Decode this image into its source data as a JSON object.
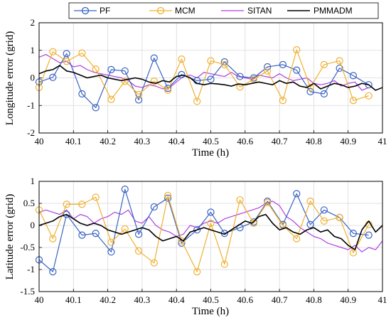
{
  "legend": {
    "entries": [
      {
        "name": "PF",
        "color": "#3a63c4",
        "marker": "circle"
      },
      {
        "name": "MCM",
        "color": "#f0b030",
        "marker": "circle"
      },
      {
        "name": "SITAN",
        "color": "#b040e0",
        "marker": "none"
      },
      {
        "name": "PMMADM",
        "color": "#000000",
        "marker": "none"
      }
    ]
  },
  "chart_data": [
    {
      "type": "line",
      "xlabel": "Time (h)",
      "ylabel": "Longitude error (grid)",
      "xlim": [
        40,
        41
      ],
      "ylim": [
        -2,
        2
      ],
      "xticks": [
        "40",
        "40.1",
        "40.2",
        "40.3",
        "40.4",
        "40.5",
        "40.6",
        "40.7",
        "40.8",
        "40.9",
        "41"
      ],
      "yticks": [
        "2",
        "1",
        "0",
        "-1",
        "-2"
      ],
      "grid": true,
      "series": [
        {
          "name": "PF",
          "x": [
            40.0,
            40.04,
            40.08,
            40.125,
            40.165,
            40.21,
            40.25,
            40.29,
            40.335,
            40.375,
            40.415,
            40.46,
            40.5,
            40.54,
            40.585,
            40.625,
            40.665,
            40.71,
            40.75,
            40.79,
            40.83,
            40.875,
            40.915,
            40.96
          ],
          "y": [
            -0.15,
            0.02,
            0.88,
            -0.58,
            -1.08,
            0.3,
            0.25,
            -0.8,
            0.72,
            -0.38,
            0.12,
            -0.1,
            -0.05,
            0.58,
            0.05,
            0.0,
            0.4,
            0.48,
            0.28,
            -0.5,
            -0.58,
            0.35,
            0.08,
            -0.25
          ]
        },
        {
          "name": "MCM",
          "x": [
            40.0,
            40.04,
            40.08,
            40.125,
            40.165,
            40.21,
            40.25,
            40.29,
            40.335,
            40.375,
            40.415,
            40.46,
            40.5,
            40.54,
            40.585,
            40.625,
            40.665,
            40.71,
            40.75,
            40.79,
            40.83,
            40.875,
            40.915,
            40.96
          ],
          "y": [
            -0.35,
            0.95,
            0.6,
            0.9,
            0.32,
            -0.78,
            -0.12,
            -0.6,
            -0.12,
            -0.45,
            0.68,
            -0.85,
            0.62,
            0.48,
            -0.33,
            -0.05,
            0.25,
            -0.82,
            1.02,
            -0.35,
            0.48,
            0.62,
            -0.82,
            -0.65
          ]
        },
        {
          "name": "SITAN",
          "x": [
            40.0,
            40.02,
            40.04,
            40.06,
            40.08,
            40.1,
            40.12,
            40.14,
            40.16,
            40.18,
            40.2,
            40.22,
            40.24,
            40.26,
            40.28,
            40.3,
            40.32,
            40.34,
            40.36,
            40.38,
            40.4,
            40.42,
            40.44,
            40.46,
            40.48,
            40.5,
            40.52,
            40.54,
            40.56,
            40.58,
            40.6,
            40.62,
            40.64,
            40.66,
            40.68,
            40.7,
            40.72,
            40.74,
            40.76,
            40.78,
            40.8,
            40.82,
            40.84,
            40.86,
            40.88,
            40.9,
            40.92,
            40.94,
            40.96
          ],
          "y": [
            0.75,
            0.85,
            0.7,
            0.55,
            0.6,
            0.4,
            0.45,
            0.3,
            0.2,
            0.15,
            0.1,
            0.05,
            0.0,
            -0.1,
            -0.3,
            -0.35,
            -0.25,
            -0.3,
            -0.4,
            -0.35,
            -0.15,
            0.05,
            0.1,
            0.0,
            0.2,
            0.15,
            0.1,
            0.05,
            0.2,
            0.05,
            0.0,
            -0.05,
            0.1,
            0.05,
            0.0,
            0.15,
            0.0,
            -0.1,
            -0.05,
            0.0,
            -0.2,
            -0.25,
            -0.2,
            -0.1,
            -0.3,
            -0.2,
            -0.15,
            -0.45,
            -0.35
          ]
        },
        {
          "name": "PMMADM",
          "x": [
            40.0,
            40.02,
            40.04,
            40.06,
            40.08,
            40.1,
            40.12,
            40.14,
            40.16,
            40.18,
            40.2,
            40.22,
            40.24,
            40.26,
            40.28,
            40.3,
            40.32,
            40.34,
            40.36,
            40.38,
            40.4,
            40.42,
            40.44,
            40.46,
            40.48,
            40.5,
            40.52,
            40.54,
            40.56,
            40.58,
            40.6,
            40.62,
            40.64,
            40.66,
            40.68,
            40.7,
            40.72,
            40.74,
            40.76,
            40.78,
            40.8,
            40.82,
            40.84,
            40.86,
            40.88,
            40.9,
            40.92,
            40.94,
            40.96,
            40.98,
            41.0
          ],
          "y": [
            0.15,
            0.25,
            0.3,
            0.45,
            0.25,
            0.2,
            0.1,
            0.0,
            0.05,
            0.1,
            0.0,
            -0.05,
            -0.1,
            -0.05,
            0.0,
            -0.05,
            -0.15,
            -0.2,
            -0.1,
            -0.15,
            0.05,
            0.1,
            0.0,
            -0.2,
            -0.25,
            -0.2,
            -0.22,
            -0.25,
            -0.3,
            -0.22,
            -0.25,
            -0.2,
            -0.15,
            -0.2,
            -0.25,
            -0.1,
            -0.2,
            -0.15,
            -0.3,
            -0.35,
            -0.2,
            -0.4,
            -0.3,
            -0.2,
            -0.25,
            -0.35,
            -0.3,
            -0.2,
            -0.25,
            -0.45,
            -0.35
          ]
        }
      ]
    },
    {
      "type": "line",
      "xlabel": "Time (h)",
      "ylabel": "Latitude error (grid)",
      "xlim": [
        40,
        41
      ],
      "ylim": [
        -1.5,
        1
      ],
      "xticks": [
        "40",
        "40.1",
        "40.2",
        "40.3",
        "40.4",
        "40.5",
        "40.6",
        "40.7",
        "40.8",
        "40.9",
        "41"
      ],
      "yticks": [
        "1",
        "0.5",
        "0",
        "-0.5",
        "-1",
        "-1.5"
      ],
      "grid": true,
      "series": [
        {
          "name": "PF",
          "x": [
            40.0,
            40.04,
            40.08,
            40.125,
            40.165,
            40.21,
            40.25,
            40.29,
            40.335,
            40.375,
            40.415,
            40.46,
            40.5,
            40.54,
            40.585,
            40.625,
            40.665,
            40.71,
            40.75,
            40.79,
            40.83,
            40.875,
            40.915,
            40.96
          ],
          "y": [
            -0.78,
            -1.05,
            0.25,
            -0.22,
            -0.18,
            -0.6,
            0.82,
            -0.2,
            0.42,
            0.62,
            -0.4,
            -0.1,
            0.3,
            -0.18,
            -0.05,
            0.08,
            0.55,
            0.02,
            0.72,
            0.02,
            0.35,
            0.18,
            -0.18,
            -0.22
          ]
        },
        {
          "name": "MCM",
          "x": [
            40.0,
            40.04,
            40.08,
            40.125,
            40.165,
            40.21,
            40.25,
            40.29,
            40.335,
            40.375,
            40.415,
            40.46,
            40.5,
            40.54,
            40.585,
            40.625,
            40.665,
            40.71,
            40.75,
            40.79,
            40.83,
            40.875,
            40.915,
            40.96
          ],
          "y": [
            0.35,
            -0.3,
            0.48,
            0.48,
            0.64,
            -0.38,
            -0.08,
            -0.58,
            -0.85,
            0.68,
            -0.35,
            -1.05,
            0.05,
            -0.88,
            0.58,
            0.05,
            0.52,
            0.0,
            -0.3,
            0.55,
            0.1,
            0.18,
            -0.62,
            0.02
          ]
        },
        {
          "name": "SITAN",
          "x": [
            40.0,
            40.02,
            40.04,
            40.06,
            40.08,
            40.1,
            40.12,
            40.14,
            40.16,
            40.18,
            40.2,
            40.22,
            40.24,
            40.26,
            40.28,
            40.3,
            40.32,
            40.34,
            40.36,
            40.38,
            40.4,
            40.42,
            40.44,
            40.46,
            40.48,
            40.5,
            40.52,
            40.54,
            40.56,
            40.58,
            40.6,
            40.62,
            40.64,
            40.66,
            40.68,
            40.7,
            40.72,
            40.74,
            40.76,
            40.78,
            40.8,
            40.82,
            40.84,
            40.86,
            40.88,
            40.9,
            40.92,
            40.94,
            40.96,
            40.98,
            41.0
          ],
          "y": [
            0.3,
            0.35,
            0.3,
            0.25,
            0.35,
            0.15,
            0.25,
            0.2,
            0.05,
            0.15,
            0.2,
            0.3,
            0.25,
            0.35,
            0.1,
            0.05,
            0.2,
            0.0,
            -0.1,
            -0.15,
            -0.25,
            -0.2,
            0.0,
            -0.05,
            0.05,
            0.1,
            0.05,
            0.15,
            0.2,
            0.25,
            0.3,
            0.35,
            0.4,
            0.5,
            0.55,
            0.45,
            0.2,
            0.1,
            -0.05,
            -0.15,
            -0.25,
            -0.3,
            -0.4,
            -0.45,
            -0.5,
            -0.55,
            -0.45,
            -0.6,
            -0.5,
            -0.55,
            -0.35
          ]
        },
        {
          "name": "PMMADM",
          "x": [
            40.0,
            40.02,
            40.04,
            40.06,
            40.08,
            40.1,
            40.12,
            40.14,
            40.16,
            40.18,
            40.2,
            40.22,
            40.24,
            40.26,
            40.28,
            40.3,
            40.32,
            40.34,
            40.36,
            40.38,
            40.4,
            40.42,
            40.44,
            40.46,
            40.48,
            40.5,
            40.52,
            40.54,
            40.56,
            40.58,
            40.6,
            40.62,
            40.64,
            40.66,
            40.68,
            40.7,
            40.72,
            40.74,
            40.76,
            40.78,
            40.8,
            40.82,
            40.84,
            40.86,
            40.88,
            40.9,
            40.92,
            40.94,
            40.96,
            40.98,
            41.0
          ],
          "y": [
            0.0,
            0.05,
            0.1,
            0.2,
            0.25,
            0.15,
            0.05,
            0.0,
            0.05,
            0.0,
            -0.1,
            -0.15,
            -0.2,
            -0.15,
            -0.1,
            -0.05,
            -0.1,
            -0.25,
            -0.35,
            -0.3,
            -0.25,
            -0.35,
            -0.15,
            -0.1,
            -0.05,
            -0.1,
            -0.15,
            -0.2,
            -0.1,
            0.0,
            0.1,
            0.05,
            0.2,
            0.25,
            0.05,
            -0.1,
            -0.05,
            -0.15,
            -0.2,
            -0.1,
            -0.05,
            -0.15,
            -0.1,
            -0.25,
            -0.3,
            -0.45,
            -0.55,
            -0.1,
            0.1,
            -0.15,
            0.0
          ]
        }
      ]
    }
  ]
}
